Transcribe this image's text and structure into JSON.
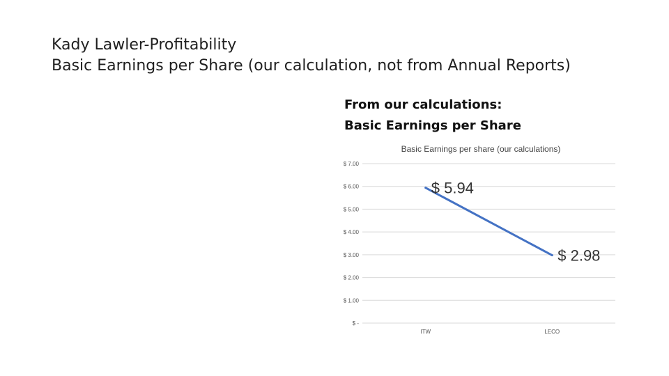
{
  "slide": {
    "title_line1": "Kady Lawler-Profitability",
    "title_line2": "Basic Earnings per Share (our calculation, not from Annual Reports)",
    "subheading_line1": "From our calculations:",
    "subheading_line2": "Basic Earnings per Share"
  },
  "chart_data": {
    "type": "line",
    "title": "Basic Earnings per share (our calculations)",
    "categories": [
      "ITW",
      "LECO"
    ],
    "series": [
      {
        "values": [
          5.94,
          2.98
        ],
        "data_labels": [
          "$ 5.94",
          "$ 2.98"
        ],
        "color": "#4472c4"
      }
    ],
    "yticks": [
      {
        "value": 0,
        "label": "$ -"
      },
      {
        "value": 1,
        "label": "$ 1.00"
      },
      {
        "value": 2,
        "label": "$ 2.00"
      },
      {
        "value": 3,
        "label": "$ 3.00"
      },
      {
        "value": 4,
        "label": "$ 4.00"
      },
      {
        "value": 5,
        "label": "$ 5.00"
      },
      {
        "value": 6,
        "label": "$ 6.00"
      },
      {
        "value": 7,
        "label": "$ 7.00"
      }
    ],
    "ylim": [
      0,
      7
    ],
    "grid": true,
    "legend": "none",
    "xlabel": "",
    "ylabel": ""
  }
}
